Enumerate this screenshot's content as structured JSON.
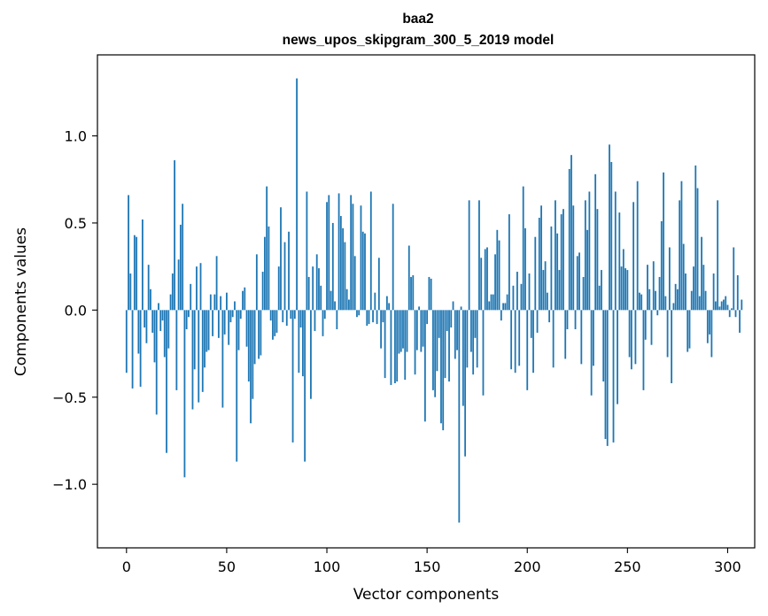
{
  "chart_data": {
    "type": "bar",
    "title": "baa2",
    "subtitle": "news_upos_skipgram_300_5_2019 model",
    "xlabel": "Vector components",
    "ylabel": "Components values",
    "xlim": [
      -14.5,
      313.5
    ],
    "ylim": [
      -1.365,
      1.465
    ],
    "xticks": [
      0,
      50,
      100,
      150,
      200,
      250,
      300
    ],
    "xtick_labels": [
      "0",
      "50",
      "100",
      "150",
      "200",
      "250",
      "300"
    ],
    "yticks": [
      -1.0,
      -0.5,
      0.0,
      0.5,
      1.0
    ],
    "ytick_labels": [
      "−1.0",
      "−0.5",
      "0.0",
      "0.5",
      "1.0"
    ],
    "grid": false,
    "color": "#1f77b4",
    "values": [
      -0.36,
      0.66,
      0.21,
      -0.45,
      0.43,
      0.42,
      -0.25,
      -0.44,
      0.52,
      -0.1,
      -0.19,
      0.26,
      0.12,
      -0.13,
      -0.3,
      -0.6,
      0.04,
      -0.12,
      -0.06,
      -0.27,
      -0.82,
      -0.22,
      0.09,
      0.21,
      0.86,
      -0.46,
      0.29,
      0.49,
      0.61,
      -0.96,
      -0.11,
      -0.04,
      0.15,
      -0.57,
      -0.34,
      0.25,
      -0.53,
      0.27,
      -0.47,
      -0.33,
      -0.24,
      -0.23,
      0.09,
      -0.15,
      0.09,
      0.31,
      -0.16,
      0.08,
      -0.56,
      -0.14,
      0.1,
      -0.2,
      -0.07,
      -0.04,
      0.05,
      -0.87,
      -0.23,
      -0.05,
      0.11,
      0.13,
      -0.21,
      -0.41,
      -0.65,
      -0.51,
      -0.31,
      0.32,
      -0.28,
      -0.26,
      0.22,
      0.42,
      0.71,
      0.48,
      -0.06,
      -0.17,
      -0.15,
      -0.13,
      0.25,
      0.59,
      -0.07,
      0.39,
      -0.09,
      0.45,
      -0.05,
      -0.76,
      -0.05,
      1.33,
      -0.36,
      -0.1,
      -0.38,
      -0.87,
      0.68,
      0.19,
      -0.51,
      0.25,
      -0.12,
      0.32,
      0.24,
      0.14,
      -0.15,
      -0.05,
      0.62,
      0.66,
      0.11,
      0.5,
      0.05,
      -0.11,
      0.67,
      0.54,
      0.47,
      0.39,
      0.12,
      0.06,
      0.66,
      0.61,
      0.31,
      -0.04,
      -0.03,
      0.6,
      0.45,
      0.44,
      -0.09,
      -0.08,
      0.68,
      -0.07,
      0.1,
      -0.08,
      0.3,
      -0.22,
      -0.07,
      -0.39,
      0.08,
      0.04,
      -0.43,
      0.61,
      -0.42,
      -0.41,
      -0.25,
      -0.24,
      -0.22,
      -0.4,
      -0.24,
      0.37,
      0.19,
      0.2,
      -0.37,
      -0.23,
      0.02,
      -0.24,
      -0.21,
      -0.64,
      -0.08,
      0.19,
      0.18,
      -0.46,
      -0.5,
      -0.35,
      -0.16,
      -0.65,
      -0.69,
      -0.39,
      -0.12,
      -0.41,
      -0.1,
      0.05,
      -0.28,
      -0.23,
      -1.22,
      0.02,
      -0.55,
      -0.84,
      -0.33,
      0.63,
      -0.24,
      -0.37,
      -0.16,
      -0.33,
      0.63,
      0.3,
      -0.49,
      0.35,
      0.36,
      0.05,
      0.09,
      0.09,
      0.32,
      0.46,
      0.4,
      -0.06,
      0.04,
      0.04,
      0.09,
      0.55,
      -0.34,
      0.14,
      -0.36,
      0.22,
      -0.32,
      0.15,
      0.71,
      0.47,
      -0.46,
      0.21,
      -0.16,
      -0.36,
      0.42,
      -0.13,
      0.53,
      0.6,
      0.23,
      0.28,
      0.1,
      -0.07,
      0.48,
      -0.33,
      0.63,
      0.44,
      0.23,
      0.55,
      0.58,
      -0.28,
      -0.11,
      0.81,
      0.89,
      0.6,
      -0.11,
      0.31,
      0.33,
      -0.31,
      0.19,
      0.63,
      0.46,
      0.68,
      -0.49,
      -0.32,
      0.78,
      0.58,
      0.14,
      0.23,
      -0.41,
      -0.74,
      -0.78,
      0.95,
      0.85,
      -0.76,
      0.68,
      -0.54,
      0.56,
      0.25,
      0.35,
      0.24,
      0.23,
      -0.27,
      -0.34,
      0.62,
      -0.31,
      0.74,
      0.1,
      0.09,
      -0.46,
      -0.17,
      0.26,
      0.12,
      -0.2,
      0.28,
      0.11,
      -0.03,
      0.19,
      0.51,
      0.79,
      0.08,
      -0.27,
      0.36,
      -0.42,
      0.04,
      0.15,
      0.12,
      0.63,
      0.74,
      0.38,
      0.21,
      -0.24,
      -0.22,
      0.11,
      0.25,
      0.83,
      0.7,
      0.08,
      0.42,
      0.26,
      0.11,
      -0.19,
      -0.14,
      -0.27,
      0.21,
      0.05,
      0.63,
      0.02,
      0.05,
      0.06,
      0.08,
      0.03,
      -0.04,
      0.01,
      0.36,
      -0.04,
      0.2,
      -0.13,
      0.06
    ]
  }
}
